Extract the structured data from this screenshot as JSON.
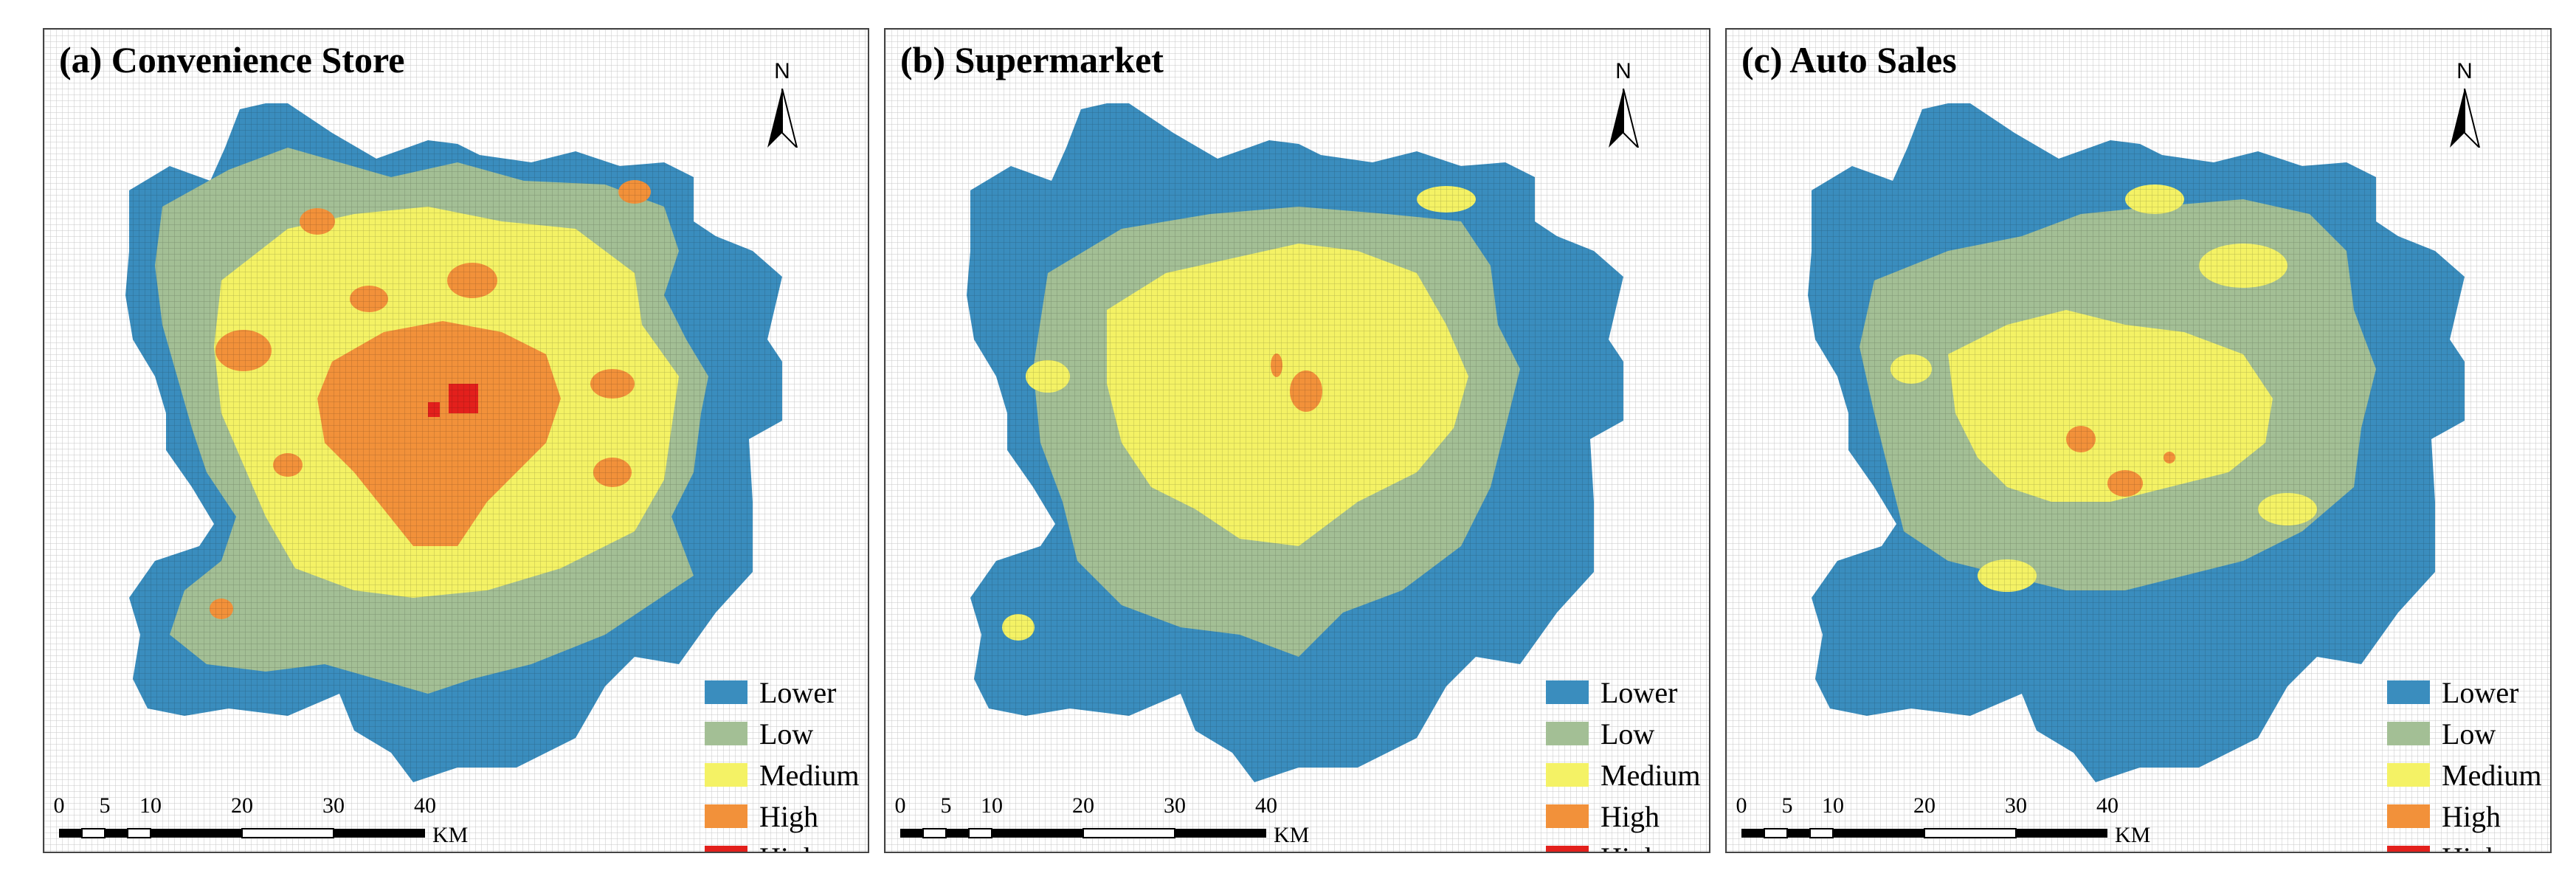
{
  "legend": {
    "classes": [
      {
        "label": "Lower",
        "color": "#3a8dbe"
      },
      {
        "label": "Low",
        "color": "#a3bf95"
      },
      {
        "label": "Medium",
        "color": "#f4f265"
      },
      {
        "label": "High",
        "color": "#f2913a"
      },
      {
        "label": "Higher",
        "color": "#e3201c"
      }
    ]
  },
  "north_arrow": {
    "letter": "N"
  },
  "scale_bar": {
    "ticks": [
      "0",
      "5",
      "10",
      "20",
      "30",
      "40"
    ],
    "unit": "KM"
  },
  "panels": [
    {
      "id": "a",
      "title": "(a) Convenience Store",
      "dominant_class": "Low",
      "core_class": "High"
    },
    {
      "id": "b",
      "title": "(b) Supermarket",
      "dominant_class": "Lower",
      "core_class": "Medium"
    },
    {
      "id": "c",
      "title": "(c) Auto Sales",
      "dominant_class": "Lower",
      "core_class": "Low"
    }
  ]
}
